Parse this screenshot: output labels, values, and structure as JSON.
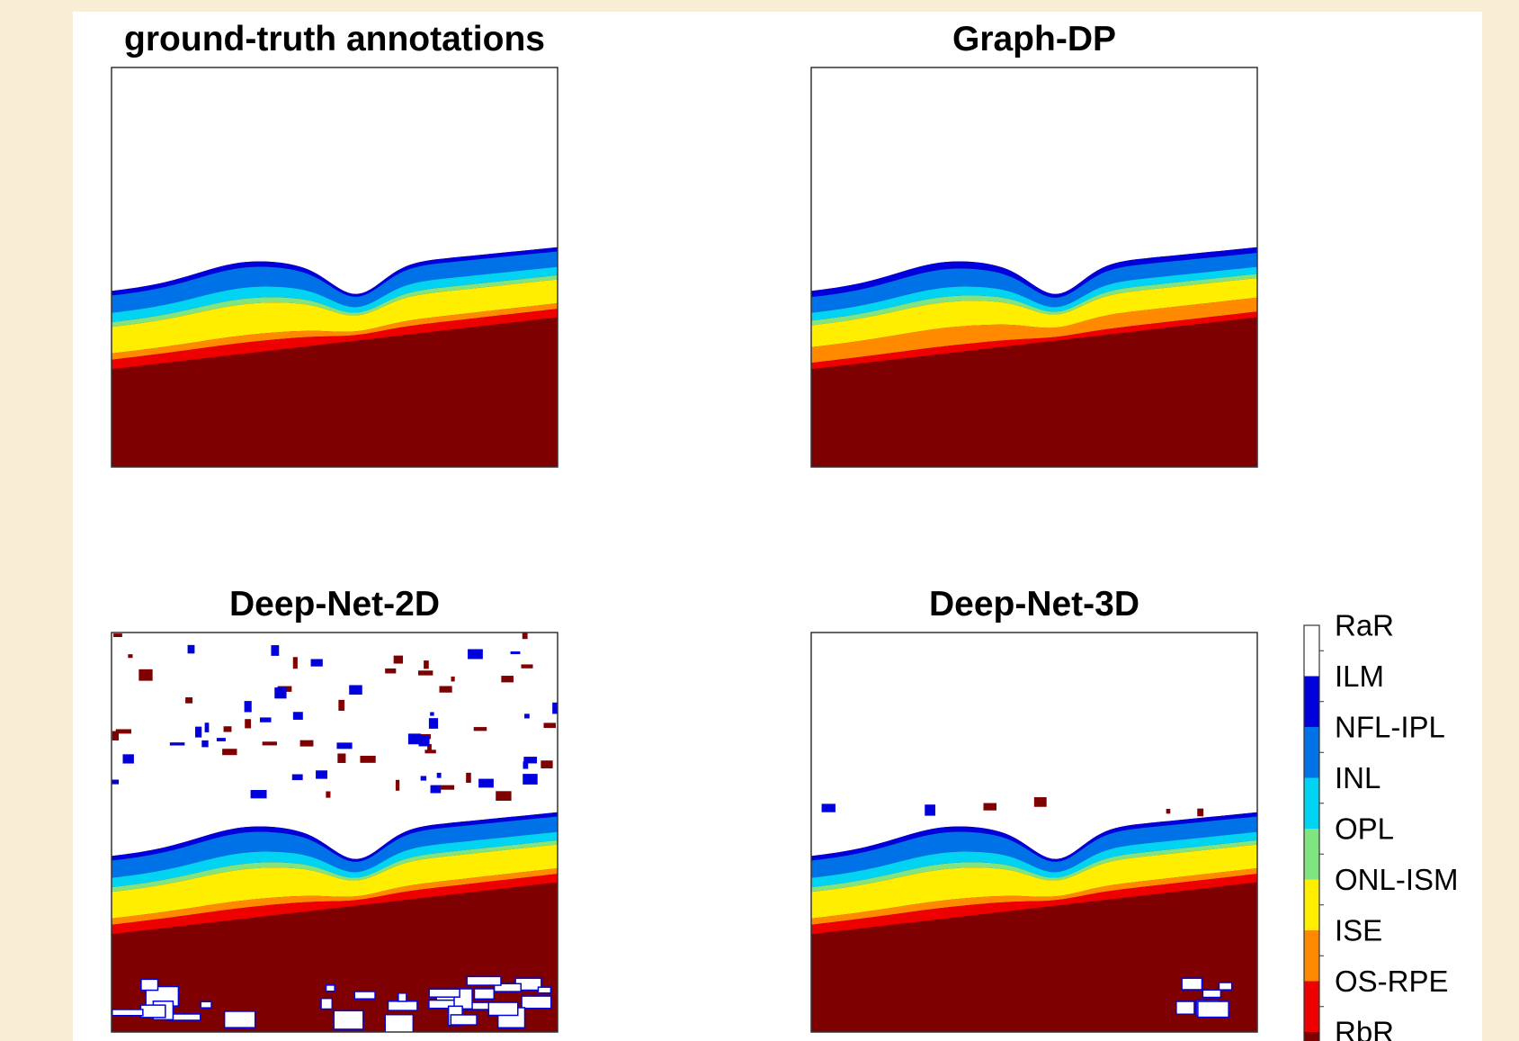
{
  "panels": [
    {
      "title": "ground-truth annotations"
    },
    {
      "title": "Graph-DP"
    },
    {
      "title": "Deep-Net-2D"
    },
    {
      "title": "Deep-Net-3D"
    }
  ],
  "colorbar": [
    {
      "label": "RaR",
      "color": "#ffffff"
    },
    {
      "label": "ILM",
      "color": "#0000dc"
    },
    {
      "label": "NFL-IPL",
      "color": "#0072e8"
    },
    {
      "label": "INL",
      "color": "#00d4f2"
    },
    {
      "label": "OPL",
      "color": "#80e480"
    },
    {
      "label": "ONL-ISM",
      "color": "#ffee00"
    },
    {
      "label": "ISE",
      "color": "#ff8a00"
    },
    {
      "label": "OS-RPE",
      "color": "#ee0000"
    },
    {
      "label": "RbR",
      "color": "#7f0000"
    }
  ]
}
